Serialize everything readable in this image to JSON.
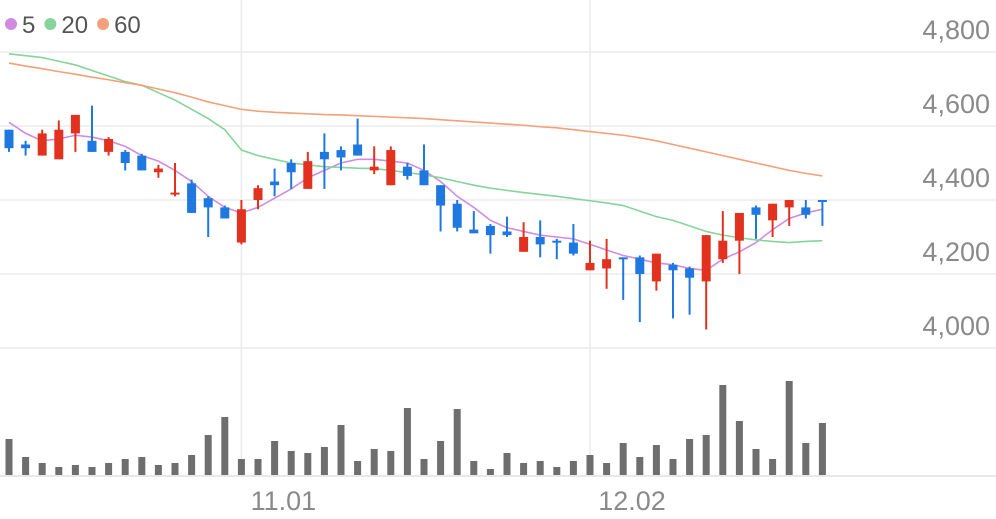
{
  "chart_data": {
    "type": "candlestick",
    "categories": [
      null,
      null,
      null,
      null,
      null,
      null,
      null,
      null,
      null,
      null,
      null,
      null,
      null,
      null,
      "11.01",
      null,
      null,
      null,
      null,
      null,
      null,
      null,
      null,
      null,
      null,
      null,
      null,
      null,
      null,
      null,
      null,
      null,
      null,
      null,
      null,
      "12.02",
      null,
      null,
      null,
      null,
      null,
      null,
      null,
      null,
      null,
      null,
      null,
      null,
      null,
      null
    ],
    "open": [
      4590,
      4550,
      4520,
      4510,
      4580,
      4560,
      4530,
      4530,
      4520,
      4475,
      4415,
      4445,
      4405,
      4380,
      4285,
      4400,
      4450,
      4500,
      4430,
      4530,
      4535,
      4550,
      4480,
      4440,
      4490,
      4480,
      4440,
      4390,
      4320,
      4330,
      4315,
      4260,
      4300,
      4290,
      4285,
      4210,
      4215,
      4245,
      4245,
      4180,
      4225,
      4215,
      4180,
      4240,
      4290,
      4380,
      4345,
      4380,
      4380,
      4400
    ],
    "high": [
      4590,
      4560,
      4590,
      4615,
      4630,
      4655,
      4570,
      4535,
      4525,
      4495,
      4500,
      4455,
      4410,
      4385,
      4400,
      4440,
      4485,
      4510,
      4530,
      4580,
      4545,
      4620,
      4545,
      4545,
      4500,
      4550,
      4440,
      4400,
      4370,
      4335,
      4355,
      4340,
      4345,
      4295,
      4335,
      4290,
      4295,
      4245,
      4250,
      4255,
      4230,
      4220,
      4305,
      4370,
      4365,
      4385,
      4390,
      4400,
      4400,
      4400
    ],
    "low": [
      4530,
      4520,
      4520,
      4510,
      4530,
      4530,
      4520,
      4480,
      4480,
      4460,
      4410,
      4365,
      4300,
      4350,
      4280,
      4375,
      4410,
      4430,
      4430,
      4430,
      4480,
      4520,
      4470,
      4440,
      4455,
      4440,
      4315,
      4315,
      4310,
      4255,
      4300,
      4260,
      4245,
      4240,
      4250,
      4210,
      4160,
      4130,
      4070,
      4155,
      4080,
      4090,
      4050,
      4230,
      4200,
      4295,
      4300,
      4330,
      4350,
      4330
    ],
    "close": [
      4540,
      4540,
      4580,
      4590,
      4630,
      4530,
      4565,
      4500,
      4480,
      4485,
      4420,
      4365,
      4380,
      4350,
      4375,
      4432,
      4440,
      4475,
      4505,
      4510,
      4515,
      4520,
      4490,
      4535,
      4465,
      4440,
      4385,
      4325,
      4310,
      4305,
      4305,
      4300,
      4280,
      4285,
      4255,
      4230,
      4240,
      4240,
      4200,
      4255,
      4210,
      4190,
      4305,
      4290,
      4365,
      4360,
      4390,
      4400,
      4360,
      4395
    ],
    "up_color": "#e2321f",
    "down_color": "#1f78e0",
    "series": [
      {
        "name": "5",
        "color": "#d08be0",
        "values": [
          4610,
          4580,
          4560,
          4565,
          4575,
          4570,
          4560,
          4545,
          4520,
          4505,
          4480,
          4450,
          4410,
          4380,
          4365,
          4380,
          4405,
          4430,
          4460,
          4480,
          4500,
          4510,
          4510,
          4505,
          4500,
          4480,
          4450,
          4410,
          4380,
          4345,
          4325,
          4315,
          4305,
          4300,
          4295,
          4280,
          4265,
          4250,
          4240,
          4230,
          4225,
          4215,
          4210,
          4240,
          4260,
          4285,
          4320,
          4350,
          4365,
          4375
        ]
      },
      {
        "name": "20",
        "color": "#86d49c",
        "values": [
          4795,
          4790,
          4785,
          4775,
          4765,
          4750,
          4735,
          4720,
          4710,
          4690,
          4670,
          4645,
          4620,
          4590,
          4535,
          4520,
          4510,
          4500,
          4495,
          4490,
          4488,
          4486,
          4485,
          4480,
          4474,
          4468,
          4460,
          4450,
          4440,
          4432,
          4426,
          4420,
          4415,
          4410,
          4404,
          4398,
          4392,
          4385,
          4370,
          4355,
          4345,
          4330,
          4315,
          4305,
          4298,
          4292,
          4288,
          4285,
          4288,
          4290
        ]
      },
      {
        "name": "60",
        "color": "#f4a07a",
        "values": [
          4770,
          4762,
          4755,
          4747,
          4740,
          4732,
          4725,
          4717,
          4710,
          4700,
          4690,
          4678,
          4665,
          4655,
          4645,
          4640,
          4637,
          4635,
          4633,
          4631,
          4630,
          4628,
          4626,
          4624,
          4622,
          4620,
          4617,
          4614,
          4611,
          4608,
          4605,
          4602,
          4598,
          4595,
          4590,
          4585,
          4580,
          4575,
          4568,
          4560,
          4550,
          4540,
          4530,
          4520,
          4510,
          4500,
          4490,
          4480,
          4472,
          4465
        ]
      }
    ],
    "volume": {
      "color": "#6e6e6e",
      "ylim": [
        0,
        100
      ],
      "values": [
        36,
        18,
        12,
        8,
        10,
        8,
        12,
        16,
        18,
        10,
        12,
        20,
        40,
        58,
        16,
        16,
        34,
        24,
        22,
        28,
        50,
        14,
        26,
        24,
        67,
        16,
        34,
        66,
        14,
        6,
        22,
        12,
        14,
        8,
        14,
        20,
        12,
        32,
        18,
        30,
        16,
        36,
        40,
        90,
        54,
        26,
        16,
        94,
        32,
        52
      ]
    },
    "ylim": [
      4000,
      4800
    ],
    "yticks": [
      {
        "value": 4000,
        "label": "4,000"
      },
      {
        "value": 4200,
        "label": "4,200"
      },
      {
        "value": 4400,
        "label": "4,400"
      },
      {
        "value": 4600,
        "label": "4,600"
      },
      {
        "value": 4800,
        "label": "4,800"
      }
    ],
    "grid": true
  }
}
